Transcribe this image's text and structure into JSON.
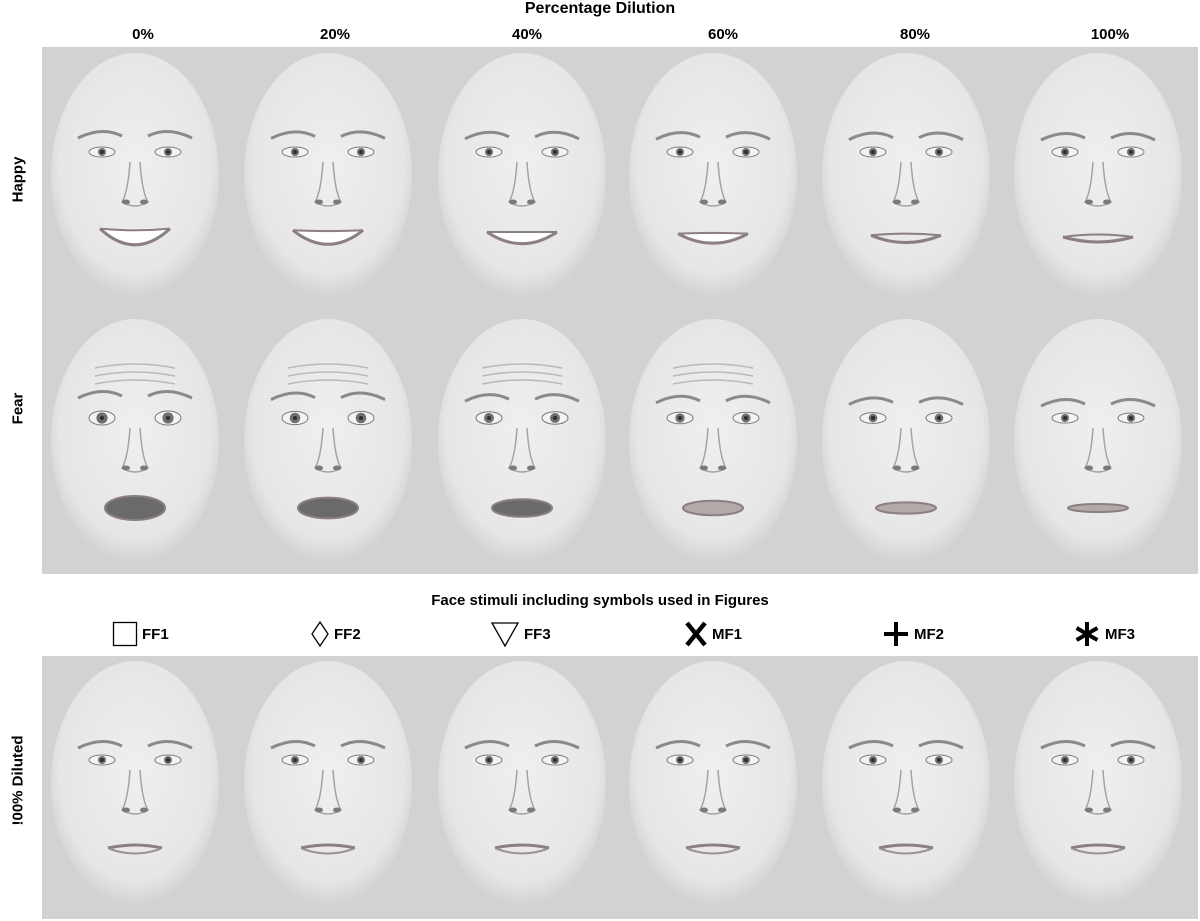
{
  "title": "Percentage Dilution",
  "columns": [
    "0%",
    "20%",
    "40%",
    "60%",
    "80%",
    "100%"
  ],
  "rows": [
    "Happy",
    "Fear",
    "!00% Diluted"
  ],
  "symbols_title": "Face stimuli including symbols used in Figures",
  "symbols": [
    {
      "label": "FF1",
      "icon": "square-icon"
    },
    {
      "label": "FF2",
      "icon": "diamond-icon"
    },
    {
      "label": "FF3",
      "icon": "triangle-down-icon"
    },
    {
      "label": "MF1",
      "icon": "x-icon"
    },
    {
      "label": "MF2",
      "icon": "plus-icon"
    },
    {
      "label": "MF3",
      "icon": "asterisk-icon"
    }
  ],
  "colors": {
    "panel_bg": "#d2d2d2",
    "face_skin": "#e6e6e6"
  }
}
